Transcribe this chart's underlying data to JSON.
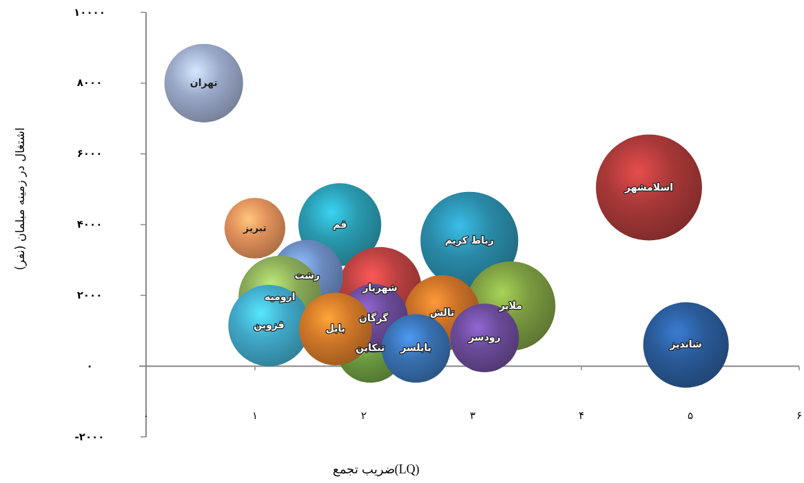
{
  "chart_data": {
    "type": "bubble",
    "xlabel": "ضریب تجمع(LQ)",
    "ylabel": "اشتغال در زمینه مبلمان (نفر)",
    "xlim": [
      0,
      6
    ],
    "xticks": [
      {
        "value": 0,
        "label": "۰"
      },
      {
        "value": 1,
        "label": "۱"
      },
      {
        "value": 2,
        "label": "۲"
      },
      {
        "value": 3,
        "label": "۳"
      },
      {
        "value": 4,
        "label": "۴"
      },
      {
        "value": 5,
        "label": "۵"
      },
      {
        "value": 6,
        "label": "۶"
      }
    ],
    "ylim": [
      -2000,
      10000
    ],
    "yticks": [
      {
        "value": -2000,
        "label": "-۲۰۰۰"
      },
      {
        "value": 0,
        "label": "۰"
      },
      {
        "value": 2000,
        "label": "۲۰۰۰"
      },
      {
        "value": 4000,
        "label": "۴۰۰۰"
      },
      {
        "value": 6000,
        "label": "۶۰۰۰"
      },
      {
        "value": 8000,
        "label": "۸۰۰۰"
      },
      {
        "value": 10000,
        "label": "۱۰۰۰۰"
      }
    ],
    "series": [
      {
        "name": "اسلامشهر",
        "color": "#a83838",
        "x": [
          4.62
        ],
        "values": [
          5050
        ],
        "sizes": [
          1
        ]
      },
      {
        "name": "رباط کریم",
        "color": "#2a8aa8",
        "x": [
          2.97
        ],
        "values": [
          3550
        ],
        "sizes": [
          0.85
        ]
      },
      {
        "name": "ملایر",
        "color": "#7a9a40",
        "x": [
          3.35
        ],
        "values": [
          1700
        ],
        "sizes": [
          0.71
        ]
      },
      {
        "name": "شاندیز",
        "color": "#2a5a98",
        "x": [
          4.96
        ],
        "values": [
          600
        ],
        "sizes": [
          0.65
        ]
      },
      {
        "name": "تهران",
        "color": "#9aa8c8",
        "x": [
          0.53
        ],
        "values": [
          8000
        ],
        "sizes": [
          0.55
        ]
      },
      {
        "name": "تبریز",
        "color": "#e0905a",
        "x": [
          1.0
        ],
        "values": [
          3900
        ],
        "sizes": [
          0.33
        ]
      },
      {
        "name": "قم",
        "color": "#2a9ab0",
        "x": [
          1.78
        ],
        "values": [
          4000
        ],
        "sizes": [
          0.61
        ]
      },
      {
        "name": "شهریار",
        "color": "#b84040",
        "x": [
          2.15
        ],
        "values": [
          2200
        ],
        "sizes": [
          0.61
        ]
      },
      {
        "name": "رشت",
        "color": "#6a8ac0",
        "x": [
          1.48
        ],
        "values": [
          2550
        ],
        "sizes": [
          0.46
        ]
      },
      {
        "name": "ارومیه",
        "color": "#8aaa58",
        "x": [
          1.23
        ],
        "values": [
          1950
        ],
        "sizes": [
          0.61
        ]
      },
      {
        "name": "قزوین",
        "color": "#40a8c8",
        "x": [
          1.13
        ],
        "values": [
          1150
        ],
        "sizes": [
          0.59
        ]
      },
      {
        "name": "تالش",
        "color": "#c87028",
        "x": [
          2.72
        ],
        "values": [
          1500
        ],
        "sizes": [
          0.51
        ]
      },
      {
        "name": "تنکابن",
        "color": "#6a9a40",
        "x": [
          2.06
        ],
        "values": [
          500
        ],
        "sizes": [
          0.42
        ]
      },
      {
        "name": "گرگان",
        "color": "#6a4a98",
        "x": [
          2.09
        ],
        "values": [
          1350
        ],
        "sizes": [
          0.42
        ]
      },
      {
        "name": "بابل",
        "color": "#d07828",
        "x": [
          1.74
        ],
        "values": [
          1050
        ],
        "sizes": [
          0.47
        ]
      },
      {
        "name": "بابلسر",
        "color": "#3870b0",
        "x": [
          2.48
        ],
        "values": [
          500
        ],
        "sizes": [
          0.42
        ]
      },
      {
        "name": "رودسر",
        "color": "#6a4a98",
        "x": [
          3.11
        ],
        "values": [
          800
        ],
        "sizes": [
          0.42
        ]
      }
    ]
  }
}
